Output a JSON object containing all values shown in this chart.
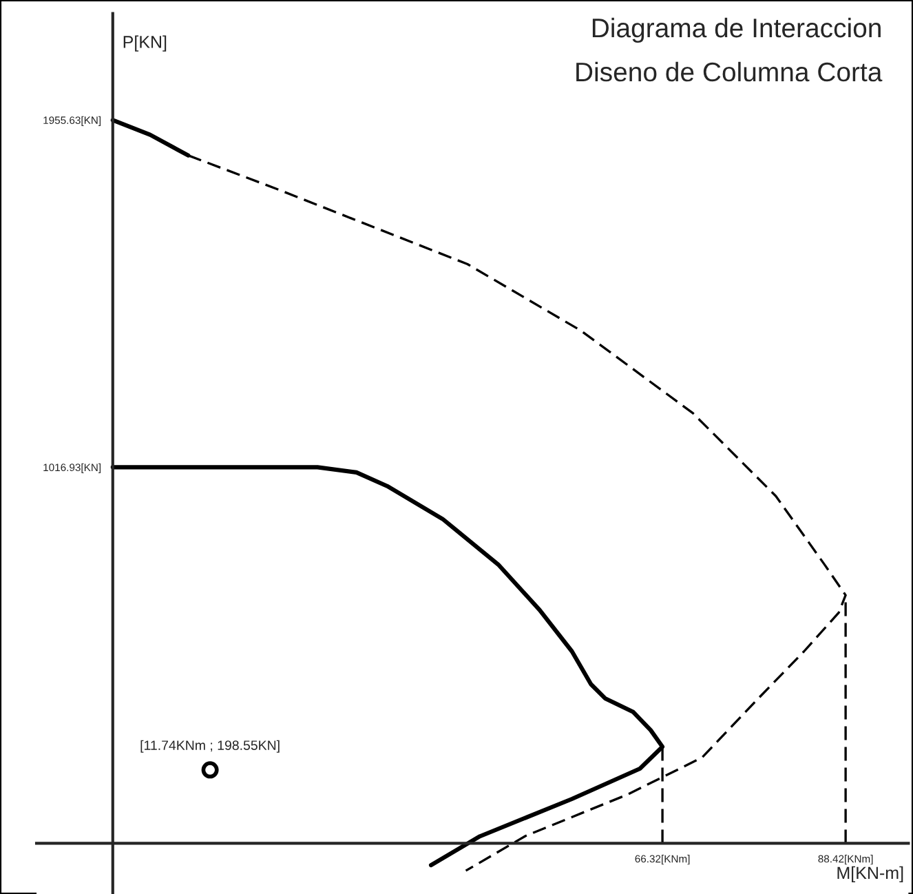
{
  "chart_data": {
    "type": "line",
    "title": "Diagrama de Interaccion",
    "subtitle": "Diseno de Columna Corta",
    "xlabel": "M[KN-m]",
    "ylabel": "P[KN]",
    "xlim": [
      -9.2,
      96
    ],
    "ylim": [
      -137,
      2244
    ],
    "xticks": [
      {
        "value": 66.32,
        "label": "66.32[KNm]"
      },
      {
        "value": 88.42,
        "label": "88.42[KNm]"
      }
    ],
    "yticks": [
      {
        "value": 1016.93,
        "label": "1016.93[KN]"
      },
      {
        "value": 1955.63,
        "label": "1955.63[KN]"
      }
    ],
    "grid": false,
    "legend": false,
    "series": [
      {
        "color": "#000000",
        "line_style": "solid",
        "x": [
          0,
          24.7,
          29.4,
          33.1,
          39.8,
          46.5,
          51.5,
          55.4,
          57.7,
          59.4,
          62.8,
          64.9,
          66.32,
          63.6,
          55.4,
          44.3,
          38.4
        ],
        "values": [
          1016.93,
          1016.93,
          1003,
          966,
          877,
          754,
          631,
          519,
          430,
          392,
          355,
          306,
          261,
          202,
          120,
          19,
          -59
        ]
      },
      {
        "color": "#000000",
        "line_style": "solid",
        "x": [
          0,
          4.5,
          9.1
        ],
        "values": [
          1955.63,
          1916,
          1860
        ]
      },
      {
        "color": "#000000",
        "line_style": "dashed",
        "x": [
          9.1,
          19.6,
          42.8,
          56.5,
          70,
          80,
          85.9,
          88.42,
          87.6,
          83.4,
          77.9,
          71.1,
          62.1,
          49.8,
          42.6
        ],
        "values": [
          1860,
          1771,
          1566,
          1386,
          1163,
          939,
          753,
          671,
          624,
          519,
          392,
          232,
          132,
          20,
          -74
        ]
      },
      {
        "color": "#000000",
        "line_style": "dashed",
        "x": [
          66.32,
          66.32
        ],
        "values": [
          0,
          261
        ]
      },
      {
        "color": "#000000",
        "line_style": "dashed",
        "x": [
          88.42,
          88.42
        ],
        "values": [
          0,
          671
        ]
      },
      {
        "type": "scatter",
        "color": "#000000",
        "marker": "circle",
        "x": [
          11.74
        ],
        "values": [
          198.55
        ]
      }
    ],
    "annotations": [
      {
        "text": "[11.74KNm ; 198.55KN]",
        "x": 11.74,
        "y": 198.55
      }
    ]
  }
}
